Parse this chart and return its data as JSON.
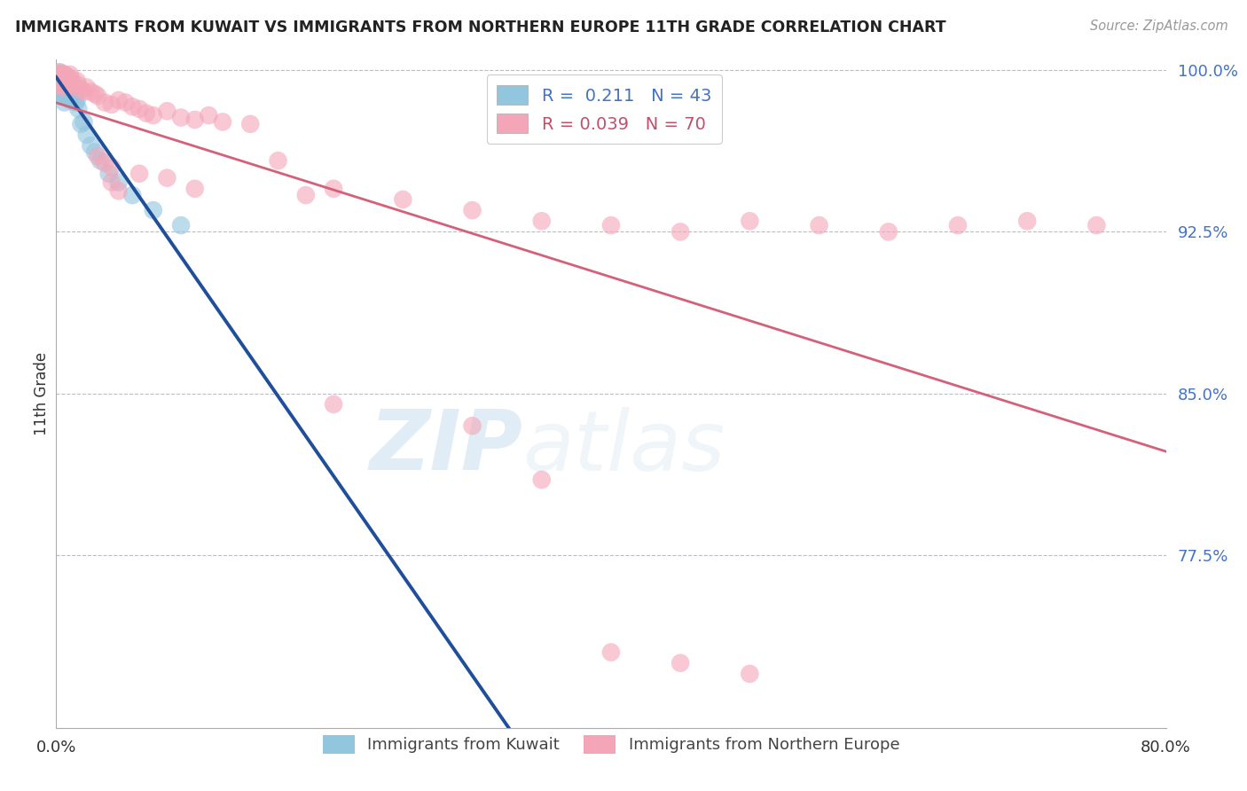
{
  "title": "IMMIGRANTS FROM KUWAIT VS IMMIGRANTS FROM NORTHERN EUROPE 11TH GRADE CORRELATION CHART",
  "source_text": "Source: ZipAtlas.com",
  "ylabel": "11th Grade",
  "legend_r_blue": "0.211",
  "legend_n_blue": "43",
  "legend_r_pink": "0.039",
  "legend_n_pink": "70",
  "blue_color": "#92C5DE",
  "pink_color": "#F4A6B8",
  "trend_blue_color": "#1F4E9A",
  "trend_pink_color": "#D4607A",
  "blue_label": "Immigrants from Kuwait",
  "pink_label": "Immigrants from Northern Europe",
  "xlim": [
    0.0,
    0.8
  ],
  "ylim": [
    0.695,
    1.005
  ],
  "y_ticks": [
    0.775,
    0.85,
    0.925,
    1.0
  ],
  "y_tick_labels": [
    "77.5%",
    "85.0%",
    "92.5%",
    "100.0%"
  ],
  "x_ticks": [
    0.0,
    0.8
  ],
  "x_tick_labels": [
    "0.0%",
    "80.0%"
  ],
  "watermark_zip": "ZIP",
  "watermark_atlas": "atlas",
  "background_color": "#ffffff",
  "blue_scatter_x": [
    0.001,
    0.001,
    0.002,
    0.002,
    0.002,
    0.003,
    0.003,
    0.003,
    0.003,
    0.004,
    0.004,
    0.004,
    0.005,
    0.005,
    0.005,
    0.006,
    0.006,
    0.006,
    0.007,
    0.007,
    0.008,
    0.008,
    0.009,
    0.009,
    0.01,
    0.01,
    0.011,
    0.012,
    0.013,
    0.014,
    0.015,
    0.016,
    0.018,
    0.02,
    0.022,
    0.025,
    0.028,
    0.032,
    0.038,
    0.045,
    0.055,
    0.07,
    0.09
  ],
  "blue_scatter_y": [
    0.998,
    0.994,
    0.999,
    0.996,
    0.992,
    0.998,
    0.995,
    0.991,
    0.988,
    0.998,
    0.994,
    0.99,
    0.997,
    0.993,
    0.989,
    0.998,
    0.994,
    0.985,
    0.996,
    0.99,
    0.995,
    0.988,
    0.994,
    0.987,
    0.993,
    0.986,
    0.99,
    0.992,
    0.988,
    0.985,
    0.986,
    0.982,
    0.975,
    0.976,
    0.97,
    0.965,
    0.962,
    0.958,
    0.952,
    0.948,
    0.942,
    0.935,
    0.928
  ],
  "pink_scatter_x": [
    0.001,
    0.002,
    0.002,
    0.003,
    0.003,
    0.004,
    0.004,
    0.005,
    0.005,
    0.006,
    0.006,
    0.007,
    0.008,
    0.008,
    0.009,
    0.01,
    0.01,
    0.011,
    0.012,
    0.013,
    0.015,
    0.016,
    0.018,
    0.02,
    0.022,
    0.025,
    0.028,
    0.03,
    0.035,
    0.04,
    0.045,
    0.05,
    0.055,
    0.06,
    0.065,
    0.07,
    0.08,
    0.09,
    0.1,
    0.11,
    0.12,
    0.14,
    0.16,
    0.18,
    0.2,
    0.25,
    0.3,
    0.35,
    0.4,
    0.45,
    0.5,
    0.55,
    0.6,
    0.65,
    0.7,
    0.75,
    0.04,
    0.06,
    0.08,
    0.1,
    0.03,
    0.035,
    0.04,
    0.045,
    0.2,
    0.3,
    0.35,
    0.4,
    0.45,
    0.5
  ],
  "pink_scatter_y": [
    0.998,
    0.997,
    0.993,
    0.999,
    0.995,
    0.998,
    0.993,
    0.997,
    0.992,
    0.998,
    0.994,
    0.996,
    0.997,
    0.993,
    0.995,
    0.998,
    0.993,
    0.996,
    0.994,
    0.992,
    0.995,
    0.993,
    0.991,
    0.99,
    0.992,
    0.99,
    0.989,
    0.988,
    0.985,
    0.984,
    0.986,
    0.985,
    0.983,
    0.982,
    0.98,
    0.979,
    0.981,
    0.978,
    0.977,
    0.979,
    0.976,
    0.975,
    0.958,
    0.942,
    0.945,
    0.94,
    0.935,
    0.93,
    0.928,
    0.925,
    0.93,
    0.928,
    0.925,
    0.928,
    0.93,
    0.928,
    0.955,
    0.952,
    0.95,
    0.945,
    0.96,
    0.957,
    0.948,
    0.944,
    0.845,
    0.835,
    0.81,
    0.73,
    0.725,
    0.72
  ]
}
